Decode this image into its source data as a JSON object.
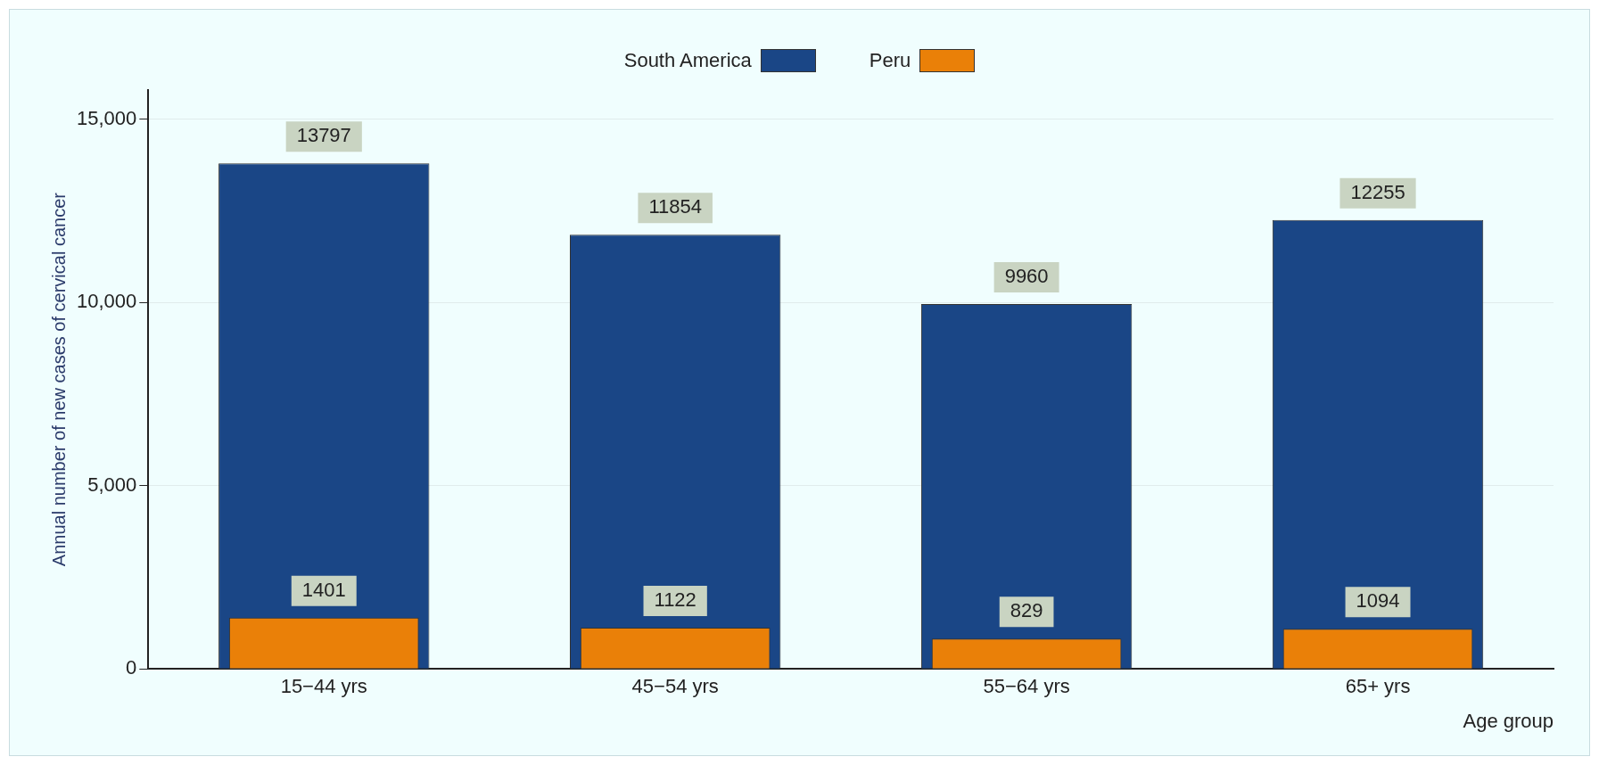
{
  "chart_data": {
    "type": "bar",
    "xlabel": "Age group",
    "ylabel": "Annual number of new cases of cervical cancer",
    "categories": [
      "15−44 yrs",
      "45−54 yrs",
      "55−64 yrs",
      "65+ yrs"
    ],
    "series": [
      {
        "name": "South America",
        "color": "#1a4686",
        "values": [
          13797,
          11854,
          9960,
          12255
        ]
      },
      {
        "name": "Peru",
        "color": "#ea8008",
        "values": [
          1401,
          1122,
          829,
          1094
        ]
      }
    ],
    "ylim": [
      0,
      15800
    ],
    "yticks": [
      0,
      {
        "value": 5000,
        "label": "5,000"
      },
      {
        "value": 10000,
        "label": "10,000"
      },
      {
        "value": 15000,
        "label": "15,000"
      }
    ],
    "grid": "y",
    "legend": "top",
    "data_labels": true
  }
}
